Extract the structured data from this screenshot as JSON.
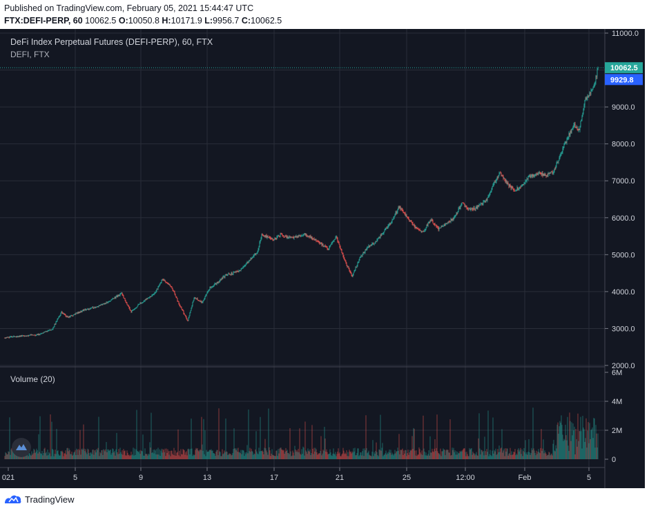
{
  "header": {
    "published": "Published on TradingView.com, February 05, 2021 15:44:47 UTC",
    "symbol": "FTX:DEFI-PERP, 60",
    "last": "10062.5",
    "o_label": "O:",
    "o": "10050.8",
    "h_label": "H:",
    "h": "10171.9",
    "l_label": "L:",
    "l": "9956.7",
    "c_label": "C:",
    "c": "10062.5"
  },
  "legend": {
    "title": "DeFi Index Perpetual Futures (DEFI-PERP), 60, FTX",
    "subtitle": "DEFI, FTX",
    "volume_label": "Volume (20)"
  },
  "footer": {
    "brand": "TradingView"
  },
  "colors": {
    "background": "#131722",
    "grid": "#2a2e39",
    "up": "#26a69a",
    "down": "#ef5350",
    "axis_text": "#d1d4dc",
    "last_price_tag": "#26a69a",
    "prev_tag": "#2962ff"
  },
  "chart_data": {
    "type": "candlestick",
    "interval": "60",
    "price_axis": {
      "ticks": [
        11000.0,
        10000.0,
        9000.0,
        8000.0,
        7000.0,
        6000.0,
        5000.0,
        4000.0,
        3000.0,
        2000.0
      ],
      "range": [
        2000,
        11000
      ]
    },
    "volume_axis": {
      "ticks": [
        "6M",
        "4M",
        "2M",
        "0"
      ],
      "range": [
        0,
        6000000
      ]
    },
    "x_ticks": [
      "021",
      "5",
      "9",
      "13",
      "17",
      "21",
      "25",
      "12:00",
      "Feb",
      "5"
    ],
    "price_tags": [
      {
        "label": "10062.5",
        "value": 10062.5,
        "kind": "last"
      },
      {
        "label": "9929.8",
        "value": 9929.8,
        "kind": "previous"
      }
    ],
    "close_path": [
      [
        0,
        2750
      ],
      [
        1,
        2800
      ],
      [
        2,
        2820
      ],
      [
        3,
        2980
      ],
      [
        3.6,
        3450
      ],
      [
        4,
        3300
      ],
      [
        4.6,
        3420
      ],
      [
        5,
        3500
      ],
      [
        5.5,
        3550
      ],
      [
        6,
        3620
      ],
      [
        6.8,
        3780
      ],
      [
        7.4,
        3950
      ],
      [
        8,
        3450
      ],
      [
        8.5,
        3650
      ],
      [
        9,
        3800
      ],
      [
        9.5,
        3950
      ],
      [
        10,
        4350
      ],
      [
        10.6,
        4100
      ],
      [
        11,
        3700
      ],
      [
        11.6,
        3200
      ],
      [
        12,
        3850
      ],
      [
        12.5,
        3700
      ],
      [
        13,
        4100
      ],
      [
        13.5,
        4250
      ],
      [
        14,
        4450
      ],
      [
        14.5,
        4500
      ],
      [
        15,
        4600
      ],
      [
        15.5,
        4850
      ],
      [
        16,
        5050
      ],
      [
        16.3,
        5550
      ],
      [
        17,
        5400
      ],
      [
        17.5,
        5550
      ],
      [
        18,
        5450
      ],
      [
        18.6,
        5500
      ],
      [
        19,
        5550
      ],
      [
        19.5,
        5450
      ],
      [
        20,
        5300
      ],
      [
        20.5,
        5150
      ],
      [
        21,
        5500
      ],
      [
        21.4,
        5000
      ],
      [
        22,
        4400
      ],
      [
        22.5,
        4900
      ],
      [
        23,
        5200
      ],
      [
        23.5,
        5350
      ],
      [
        24,
        5600
      ],
      [
        24.5,
        5900
      ],
      [
        25,
        6300
      ],
      [
        25.6,
        5950
      ],
      [
        26,
        5750
      ],
      [
        26.5,
        5600
      ],
      [
        27,
        5950
      ],
      [
        27.5,
        5700
      ],
      [
        28,
        5850
      ],
      [
        28.5,
        6000
      ],
      [
        29,
        6400
      ],
      [
        29.5,
        6200
      ],
      [
        30,
        6300
      ],
      [
        30.5,
        6450
      ],
      [
        31,
        6900
      ],
      [
        31.4,
        7200
      ],
      [
        31.8,
        6950
      ],
      [
        32.3,
        6750
      ],
      [
        32.8,
        6850
      ],
      [
        33.2,
        7100
      ],
      [
        33.8,
        7200
      ],
      [
        34.3,
        7150
      ],
      [
        34.8,
        7250
      ],
      [
        35.2,
        7700
      ],
      [
        35.7,
        8200
      ],
      [
        36.1,
        8500
      ],
      [
        36.4,
        8350
      ],
      [
        36.8,
        9200
      ],
      [
        37.2,
        9450
      ],
      [
        37.4,
        9650
      ],
      [
        37.6,
        10062.5
      ]
    ]
  }
}
